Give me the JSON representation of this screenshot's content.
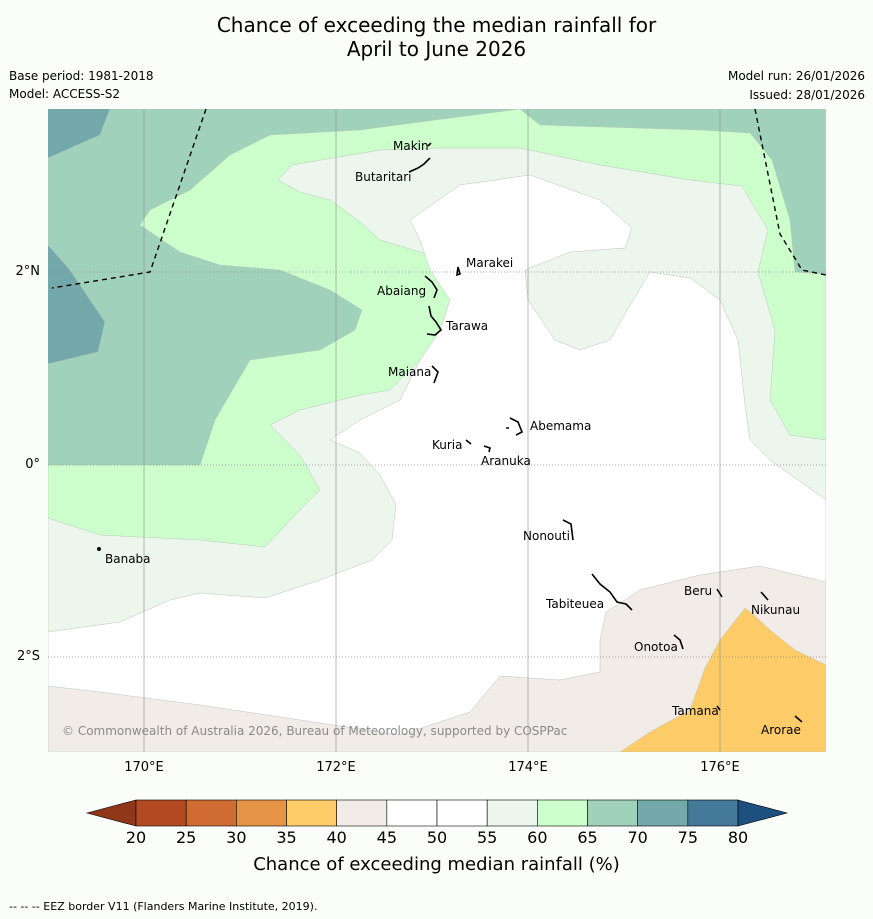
{
  "header": {
    "title_line1": "Chance of exceeding the median rainfall for",
    "title_line2": "April to June 2026",
    "base_period": "Base period: 1981-2018",
    "model": "Model: ACCESS-S2",
    "model_run": "Model run: 26/01/2026",
    "issued": "Issued: 28/01/2026"
  },
  "map": {
    "lat_labels": [
      "2°N",
      "0°",
      "2°S"
    ],
    "lon_labels": [
      "170°E",
      "172°E",
      "174°E",
      "176°E"
    ],
    "copyright": "© Commonwealth of Australia 2026, Bureau of Meteorology, supported by COSPPac",
    "places": [
      "Makin",
      "Butaritari",
      "Marakei",
      "Abaiang",
      "Tarawa",
      "Maiana",
      "Abemama",
      "Kuria",
      "Aranuka",
      "Banaba",
      "Nonouti",
      "Beru",
      "Nikunau",
      "Tabiteuea",
      "Onotoa",
      "Tamana",
      "Arorae"
    ],
    "colors": {
      "c35_40": "#fdcb67",
      "c40_45": "#f1ece7",
      "c45_55": "#ffffff",
      "c55_60": "#ecf6ec",
      "c60_65": "#ccffcc",
      "c65_70": "#9fd1bb",
      "c70_75": "#74a9ab"
    }
  },
  "colorbar": {
    "ticks": [
      "20",
      "25",
      "30",
      "35",
      "40",
      "45",
      "50",
      "55",
      "60",
      "65",
      "70",
      "75",
      "80"
    ],
    "colors": [
      "#b44a23",
      "#d06c32",
      "#e49444",
      "#fdcb67",
      "#f1ece7",
      "#ffffff",
      "#ffffff",
      "#ecf6ec",
      "#ccffcc",
      "#9fd1bb",
      "#74a9ab",
      "#44799a"
    ],
    "under_color": "#913719",
    "over_color": "#1d4f7f",
    "title": "Chance of exceeding median rainfall (%)"
  },
  "footer": {
    "eez": "--  --  -- EEZ border V11 (Flanders Marine Institute, 2019)."
  }
}
